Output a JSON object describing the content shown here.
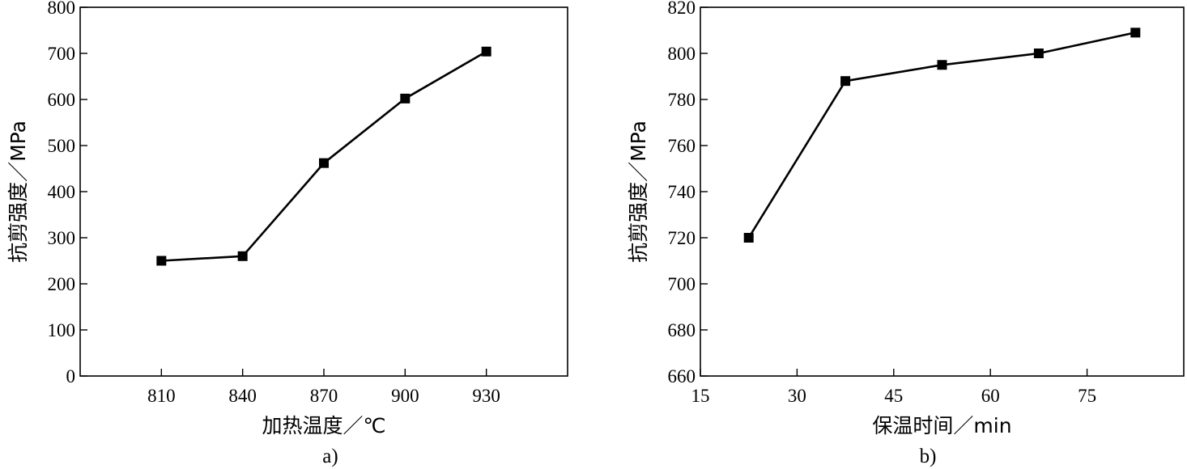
{
  "chart_data": [
    {
      "type": "line",
      "caption": "a)",
      "xlabel": "加热温度／℃",
      "ylabel": "抗剪强度／MPa",
      "x": [
        810,
        840,
        870,
        900,
        930
      ],
      "xticks": [
        "810",
        "840",
        "870",
        "900",
        "930"
      ],
      "xlim": [
        780,
        960
      ],
      "ylim": [
        0,
        800
      ],
      "yticks": [
        "0",
        "100",
        "200",
        "300",
        "400",
        "500",
        "600",
        "700",
        "800"
      ],
      "series": [
        {
          "values": [
            250,
            260,
            462,
            602,
            704
          ]
        }
      ],
      "marker": "square",
      "grid": false
    },
    {
      "type": "line",
      "caption": "b)",
      "xlabel": "保温时间／min",
      "ylabel": "抗剪强度／MPa",
      "x": [
        22.5,
        37.5,
        52.5,
        67.5,
        82.5
      ],
      "xticks": [
        "15",
        "30",
        "45",
        "60",
        "75"
      ],
      "xlim": [
        15,
        90
      ],
      "ylim": [
        660,
        820
      ],
      "yticks": [
        "660",
        "680",
        "700",
        "720",
        "740",
        "760",
        "780",
        "800",
        "820"
      ],
      "series": [
        {
          "values": [
            720,
            788,
            795,
            800,
            809
          ]
        }
      ],
      "marker": "square",
      "grid": false
    }
  ]
}
